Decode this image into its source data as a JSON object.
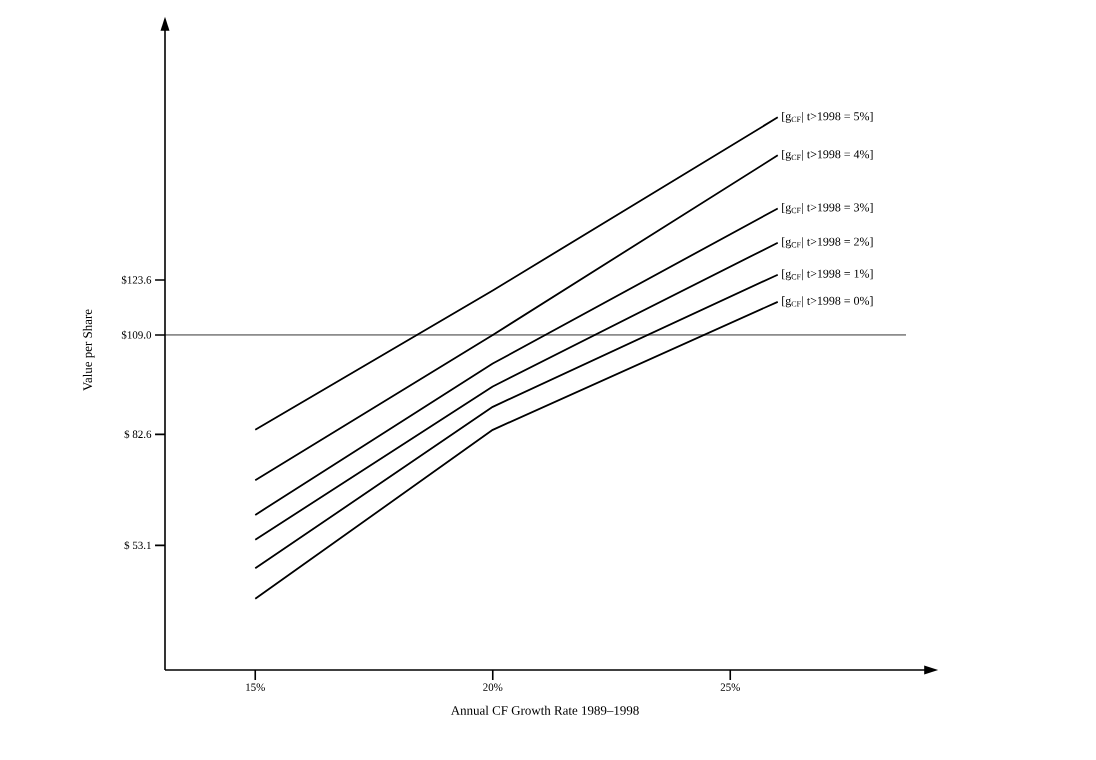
{
  "chart_data": {
    "type": "line",
    "xlabel": "Annual CF Growth Rate 1989–1998",
    "ylabel": "Value per Share",
    "x": [
      15,
      20,
      26
    ],
    "series": [
      {
        "name": "[g$_{CF}$| t>1998 = 5%]",
        "color": "#000000",
        "values": [
          83.8,
          120.8,
          166.8
        ]
      },
      {
        "name": "[g$_{CF}$| t>1998 = 4%]",
        "color": "#000000",
        "values": [
          70.4,
          109.0,
          156.7
        ]
      },
      {
        "name": "[g$_{CF}$| t>1998 = 3%]",
        "color": "#000000",
        "values": [
          61.2,
          101.4,
          142.6
        ]
      },
      {
        "name": "[g$_{CF}$| t>1998 = 2%]",
        "color": "#000000",
        "values": [
          54.6,
          95.3,
          133.5
        ]
      },
      {
        "name": "[g$_{CF}$| t>1998 = 1%]",
        "color": "#000000",
        "values": [
          47.0,
          89.9,
          125.0
        ]
      },
      {
        "name": "[g$_{CF}$| t>1998 = 0%]",
        "color": "#000000",
        "values": [
          38.9,
          83.8,
          117.8
        ]
      }
    ],
    "xlim": [
      13.1,
      29.1
    ],
    "ylim": [
      20,
      190
    ],
    "xticks": [
      {
        "value": 15,
        "label": "15%"
      },
      {
        "value": 20,
        "label": "20%"
      },
      {
        "value": 25,
        "label": "25%"
      }
    ],
    "yticks": [
      {
        "value": 53.1,
        "label": "$ 53.1"
      },
      {
        "value": 82.6,
        "label": "$ 82.6"
      },
      {
        "value": 109.0,
        "label": "$109.0"
      },
      {
        "value": 123.6,
        "label": "$123.6"
      }
    ],
    "ref_lines": [
      {
        "axis": "y",
        "value": 109.0,
        "color": "#000000"
      }
    ],
    "grid": false,
    "legend": false,
    "marker": "none",
    "line_style": "solid"
  }
}
